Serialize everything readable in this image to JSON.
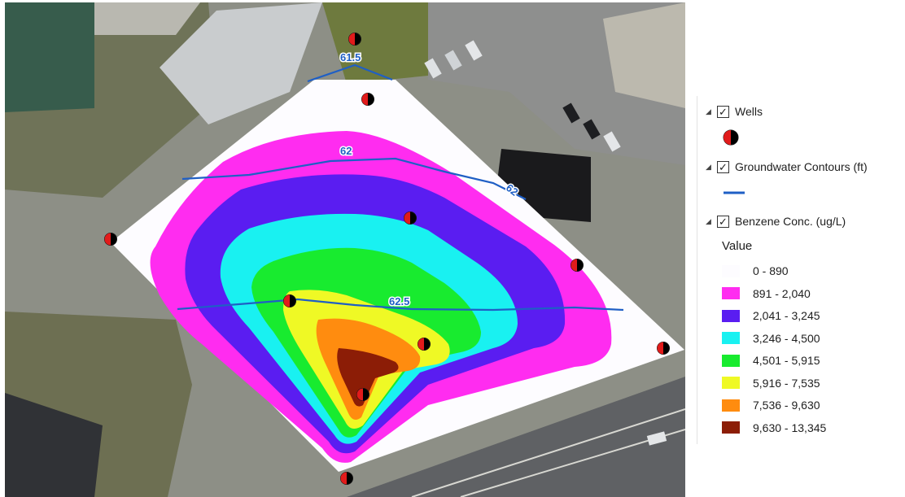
{
  "map": {
    "contour_labels": [
      "61.5",
      "62",
      "62",
      "62.5"
    ],
    "contour_color": "#1f5fc5",
    "well_icon": "well-marker-icon"
  },
  "legend": {
    "layers": [
      {
        "name": "Wells",
        "checked": true,
        "symbol": "red-black-circle"
      },
      {
        "name": "Groundwater Contours (ft)",
        "checked": true,
        "symbol": "blue-line"
      },
      {
        "name": "Benzene Conc. (ug/L)",
        "checked": true,
        "symbol": "classified-raster"
      }
    ],
    "value_header": "Value",
    "classes": [
      {
        "label": "0 - 890",
        "color": "#fdfcff"
      },
      {
        "label": "891 - 2,040",
        "color": "#ff2cf0"
      },
      {
        "label": "2,041 - 3,245",
        "color": "#5a1df1"
      },
      {
        "label": "3,246 - 4,500",
        "color": "#19f1f1"
      },
      {
        "label": "4,501 - 5,915",
        "color": "#18eb2f"
      },
      {
        "label": "5,916 - 7,535",
        "color": "#eff925"
      },
      {
        "label": "7,536 - 9,630",
        "color": "#ff8c0f"
      },
      {
        "label": "9,630 - 13,345",
        "color": "#8c1d06"
      }
    ]
  }
}
